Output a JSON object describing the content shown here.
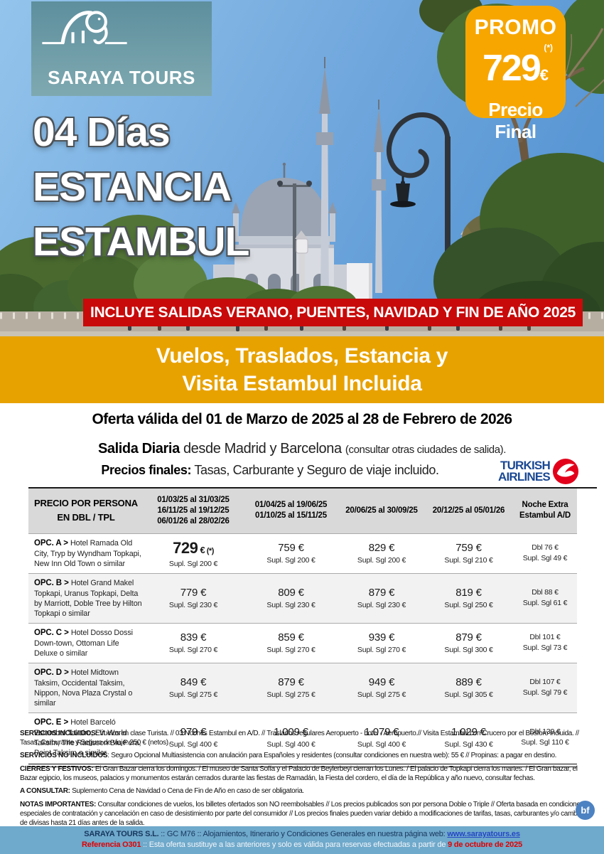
{
  "colors": {
    "promo_bg": "#F7A600",
    "ribbon_bg": "#C80A0A",
    "band_bg": "#E8A200",
    "header_gray": "#D9D9D9",
    "row_gray": "#F2F2F2",
    "footer_bg": "#6FA9CB",
    "airline_blue": "#1A4893",
    "airline_red": "#E2001A",
    "accent_red_text": "#E00000"
  },
  "brand": {
    "logo_text": "SARAYA TOURS"
  },
  "promo": {
    "label": "PROMO",
    "asterisk": "(*)",
    "price": "729",
    "currency": "€",
    "final": "Precio Final"
  },
  "hero": {
    "title": [
      "04 Días",
      "ESTANCIA",
      "ESTAMBUL"
    ],
    "ribbon": "INCLUYE SALIDAS VERANO, PUENTES, NAVIDAD Y FIN DE AÑO 2025"
  },
  "band": {
    "line1": "Vuelos, Traslados, Estancia y",
    "line2": "Visita Estambul Incluida"
  },
  "offer": {
    "validity": "Oferta válida del 01 de Marzo de 2025 al 28 de Febrero de 2026",
    "departure_bold": "Salida Diaria",
    "departure_rest": " desde Madrid y Barcelona ",
    "departure_small": "(consultar otras ciudades de salida).",
    "prices_bold": "Precios finales:",
    "prices_rest": " Tasas, Carburante y Seguro de viaje incluido."
  },
  "airline": {
    "line1": "TURKISH",
    "line2": "AIRLINES"
  },
  "table": {
    "header": [
      {
        "lines": [
          "PRECIO POR PERSONA",
          "EN DBL / TPL"
        ]
      },
      {
        "lines": [
          "01/03/25 al 31/03/25",
          "16/11/25 al 19/12/25",
          "06/01/26 al 28/02/26"
        ]
      },
      {
        "lines": [
          "01/04/25 al 19/06/25",
          "01/10/25 al 15/11/25"
        ]
      },
      {
        "lines": [
          "20/06/25 al 30/09/25"
        ]
      },
      {
        "lines": [
          "20/12/25 al 05/01/26"
        ]
      },
      {
        "lines": [
          "Noche Extra",
          "Estambul A/D"
        ]
      }
    ],
    "rows": [
      {
        "opt": "OPC. A >",
        "hotel": "Hotel Ramada Old City, Tryp by Wyndham Topkapi, New Inn Old Town o similar",
        "shaded": false,
        "cells": [
          {
            "big": true,
            "num": "729",
            "cur": "€",
            "note": "(*)",
            "supl": "Supl. Sgl 200 €"
          },
          {
            "price": "759 €",
            "supl": "Supl. Sgl 200 €"
          },
          {
            "price": "829 €",
            "supl": "Supl. Sgl 200 €"
          },
          {
            "price": "759 €",
            "supl": "Supl. Sgl 210 €"
          }
        ],
        "extra": {
          "dbl": "Dbl 76 €",
          "supl": "Supl. Sgl 49 €"
        }
      },
      {
        "opt": "OPC. B >",
        "hotel": "Hotel Grand Makel Topkapi, Uranus Topkapi, Delta by Marriott, Doble Tree by Hilton Topkapi o similar",
        "shaded": true,
        "cells": [
          {
            "price": "779 €",
            "supl": "Supl. Sgl 230 €"
          },
          {
            "price": "809 €",
            "supl": "Supl. Sgl 230 €"
          },
          {
            "price": "879 €",
            "supl": "Supl. Sgl 230 €"
          },
          {
            "price": "819 €",
            "supl": "Supl. Sgl 250 €"
          }
        ],
        "extra": {
          "dbl": "Dbl 88 €",
          "supl": "Supl. Sgl 61 €"
        }
      },
      {
        "opt": "OPC. C >",
        "hotel": "Hotel Dosso Dossi Down-town, Ottoman Life Deluxe o similar",
        "shaded": false,
        "cells": [
          {
            "price": "839 €",
            "supl": "Supl. Sgl 270 €"
          },
          {
            "price": "859 €",
            "supl": "Supl. Sgl 270 €"
          },
          {
            "price": "939 €",
            "supl": "Supl. Sgl 270 €"
          },
          {
            "price": "879 €",
            "supl": "Supl. Sgl 300 €"
          }
        ],
        "extra": {
          "dbl": "Dbl 101 €",
          "supl": "Supl. Sgl 73 €"
        }
      },
      {
        "opt": "OPC. D >",
        "hotel": "Hotel Midtown Taksim, Occidental Taksim, Nippon, Nova Plaza Crystal o similar",
        "shaded": true,
        "cells": [
          {
            "price": "849 €",
            "supl": "Supl. Sgl 275 €"
          },
          {
            "price": "879 €",
            "supl": "Supl. Sgl 275 €"
          },
          {
            "price": "949 €",
            "supl": "Supl. Sgl 275 €"
          },
          {
            "price": "889 €",
            "supl": "Supl. Sgl 305 €"
          }
        ],
        "extra": {
          "dbl": "Dbl 107 €",
          "supl": "Supl. Sgl 79 €"
        }
      },
      {
        "opt": "OPC. E >",
        "hotel": "Hotel Barceló Estambul Taksim, Elit World Taksim, The Radisson Blu Pera, Point Taksim o similar",
        "shaded": false,
        "cells": [
          {
            "price": "979 €",
            "supl": "Supl. Sgl 400 €"
          },
          {
            "price": "1.009 €",
            "supl": "Supl. Sgl 400 €"
          },
          {
            "price": "1.079 €",
            "supl": "Supl. Sgl 400 €"
          },
          {
            "price": "1.029 €",
            "supl": "Supl. Sgl 430 €"
          }
        ],
        "extra": {
          "dbl": "Dbl 139 €",
          "supl": "Supl. Sgl 110 €"
        }
      }
    ]
  },
  "notes": [
    {
      "label": "SERVICIOS INCLUIDOS:",
      "text": " Vuelos en clase Turista. // 03 Noches Estambul en A/D. // Traslados regulares Aeropuerto - hotel - Aeropuerto.// Visita Estambul con Crucero por el Bósforo incluida. // Tasas, Carburante y Seguro de viaje: 250 € (netos)."
    },
    {
      "label": "SERVICIOS NO INCLUIDOS",
      "text": ": Seguro Opcional Multiasistencia con anulación para Españoles y residentes (consultar condiciones en nuestra web): 55 € // Propinas: a pagar en destino."
    },
    {
      "label": "CIERRES Y FESTIVOS:",
      "text": " El Gran Bazar cierra los domingos. / El museo de Santa Sofía y el Palacio de Beylerbeyi cierran los Lunes. / El palacio de Topkapi cierra los martes. / El Gran bazar, el Bazar egipcio, los museos, palacios y monumentos estarán cerrados durante las fiestas de Ramadán, la Fiesta del cordero, el día de la República y año nuevo, consultar fechas."
    },
    {
      "label": "A CONSULTAR:",
      "text": " Suplemento Cena de Navidad o Cena de Fin de Año en caso de ser obligatoria."
    },
    {
      "label": "NOTAS IMPORTANTES:",
      "text": " Consultar condiciones de vuelos, los billetes ofertados son NO reembolsables // Los precios publicados son por persona Doble o Triple // Oferta basada en condiciones especiales de contratación y cancelación en caso de desistimiento por parte del consumidor // Los precios finales pueden variar debido a modificaciones de tarifas, tasas, carburantes y/o cambios de divisas hasta 21 días antes de la salida."
    }
  ],
  "footer": {
    "brand": "SARAYA TOURS S.L.",
    "line1_text": " :: GC M76 ::  Alojamientos, Itinerario y Condiciones Generales en nuestra página web: ",
    "link": "www.sarayatours.es",
    "ref": "Referencia O301",
    "line2_text": " :: Esta oferta sustituye a las anteriores y solo es válida para reservas efectuadas a partir de ",
    "date": "9 de octubre de 2025"
  },
  "badge": {
    "label": "bf"
  }
}
